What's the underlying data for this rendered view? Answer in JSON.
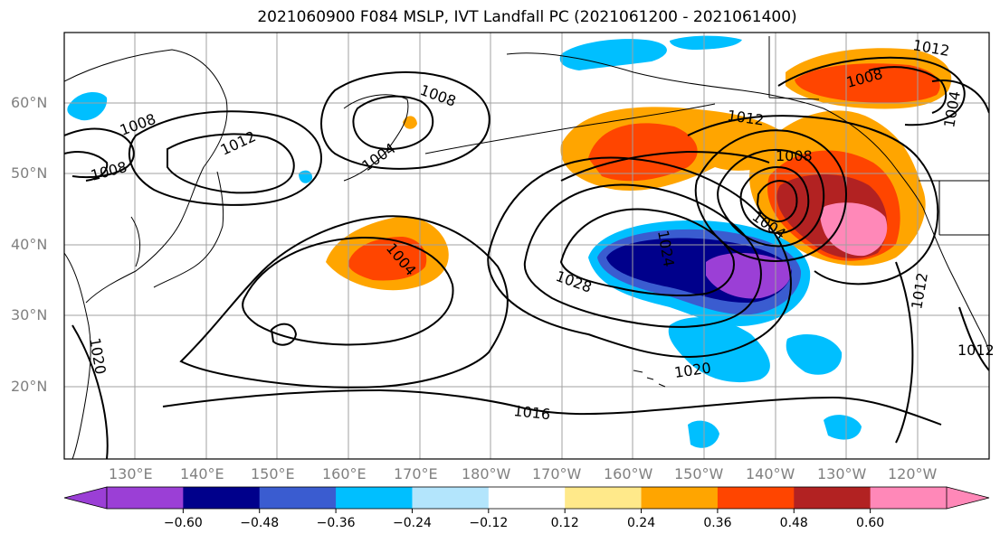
{
  "title": "2021060900 F084 MSLP, IVT Landfall PC (2021061200 - 2021061400)",
  "lat_labels": [
    "60°N",
    "50°N",
    "40°N",
    "30°N",
    "20°N"
  ],
  "lon_labels": [
    "130°E",
    "140°E",
    "150°E",
    "160°E",
    "170°E",
    "180°W",
    "170°W",
    "160°W",
    "150°W",
    "140°W",
    "130°W",
    "120°W"
  ],
  "contour_labels": [
    "1008",
    "1012",
    "1008",
    "1004",
    "1008",
    "1012",
    "1008",
    "1004",
    "1016",
    "1020",
    "1028",
    "1024",
    "1004",
    "1008",
    "1004",
    "1012",
    "1012",
    "1020",
    "1016",
    "1012",
    "1008",
    "1012"
  ],
  "colorbar": {
    "colors": [
      "#9b3fd6",
      "#00008b",
      "#3a5cd0",
      "#00bfff",
      "#b3e5fc",
      "#ffffff",
      "#ffe98a",
      "#ffa500",
      "#ff4500",
      "#b22222",
      "#ff88b8"
    ],
    "tick_labels": [
      "−0.60",
      "−0.48",
      "−0.36",
      "−0.24",
      "−0.12",
      "0.12",
      "0.24",
      "0.36",
      "0.48",
      "0.60"
    ]
  }
}
